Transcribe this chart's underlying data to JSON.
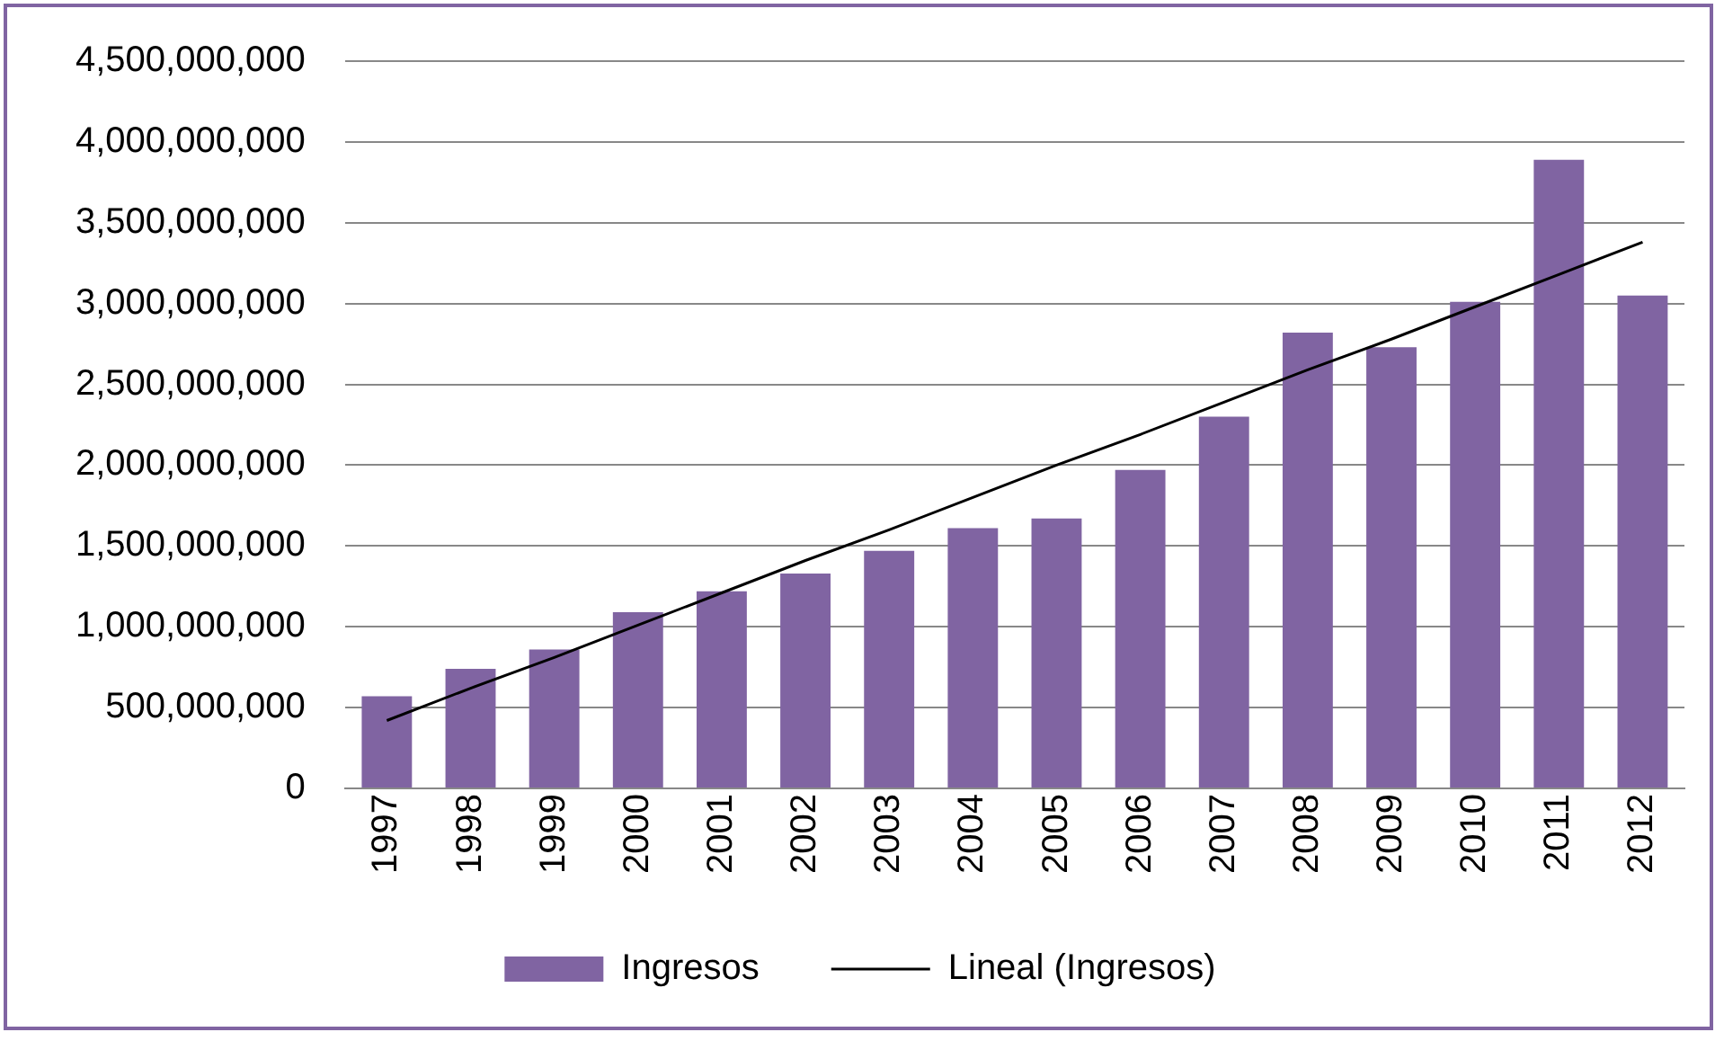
{
  "chart_data": {
    "type": "bar",
    "categories": [
      "1997",
      "1998",
      "1999",
      "2000",
      "2001",
      "2002",
      "2003",
      "2004",
      "2005",
      "2006",
      "2007",
      "2008",
      "2009",
      "2010",
      "2011",
      "2012"
    ],
    "series": [
      {
        "name": "Ingresos",
        "color": "#8064a2",
        "values": [
          570000000,
          740000000,
          860000000,
          1090000000,
          1220000000,
          1330000000,
          1470000000,
          1610000000,
          1670000000,
          1970000000,
          2300000000,
          2820000000,
          2730000000,
          3010000000,
          3890000000,
          3050000000
        ]
      },
      {
        "name": "Lineal (Ingresos)",
        "type": "line",
        "color": "#000000",
        "values": [
          420000000,
          620000000,
          810000000,
          1010000000,
          1210000000,
          1410000000,
          1600000000,
          1800000000,
          2000000000,
          2190000000,
          2390000000,
          2590000000,
          2780000000,
          2980000000,
          3180000000,
          3380000000
        ]
      }
    ],
    "ylim": [
      0,
      4500000000
    ],
    "yticks": [
      {
        "value": 0,
        "label": "0"
      },
      {
        "value": 500000000,
        "label": "500,000,000"
      },
      {
        "value": 1000000000,
        "label": "1,000,000,000"
      },
      {
        "value": 1500000000,
        "label": "1,500,000,000"
      },
      {
        "value": 2000000000,
        "label": "2,000,000,000"
      },
      {
        "value": 2500000000,
        "label": "2,500,000,000"
      },
      {
        "value": 3000000000,
        "label": "3,000,000,000"
      },
      {
        "value": 3500000000,
        "label": "3,500,000,000"
      },
      {
        "value": 4000000000,
        "label": "4,000,000,000"
      },
      {
        "value": 4500000000,
        "label": "4,500,000,000"
      }
    ],
    "grid": "y",
    "legend": "bottom",
    "marker": "none"
  }
}
